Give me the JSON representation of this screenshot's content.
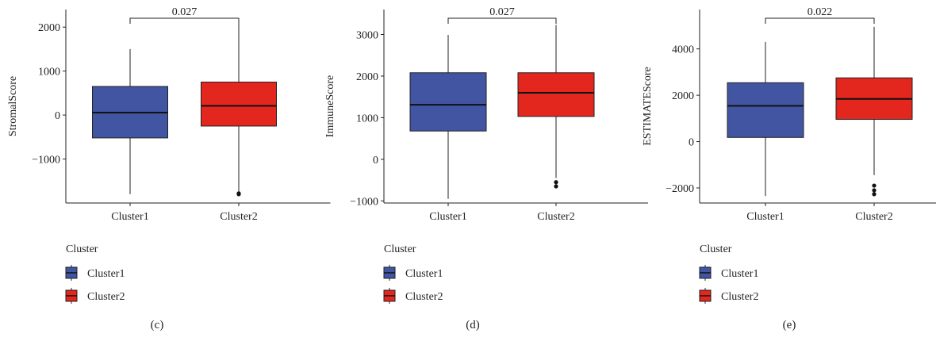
{
  "legend": {
    "title": "Cluster",
    "items": [
      {
        "label": "Cluster1",
        "color": "#4155a3"
      },
      {
        "label": "Cluster2",
        "color": "#e3261e"
      }
    ]
  },
  "chart_data": [
    {
      "type": "box",
      "panel_label": "(c)",
      "ylabel": "StromalScore",
      "xlabel": "",
      "categories": [
        "Cluster1",
        "Cluster2"
      ],
      "ylim": [
        -2000,
        2400
      ],
      "yticks": [
        -1000,
        0,
        1000,
        2000
      ],
      "ytick_labels": [
        "−1000",
        "0",
        "1000",
        "2000"
      ],
      "p_value": "0.027",
      "boxes": [
        {
          "name": "Cluster1",
          "whisker_low": -1800,
          "q1": -520,
          "median": 55,
          "q3": 650,
          "whisker_high": 1500,
          "outliers": []
        },
        {
          "name": "Cluster2",
          "whisker_low": -1750,
          "q1": -250,
          "median": 210,
          "q3": 750,
          "whisker_high": 2100,
          "outliers": [
            -1780,
            -1800
          ]
        }
      ]
    },
    {
      "type": "box",
      "panel_label": "(d)",
      "ylabel": "ImmuneScore",
      "xlabel": "",
      "categories": [
        "Cluster1",
        "Cluster2"
      ],
      "ylim": [
        -1050,
        3600
      ],
      "yticks": [
        -1000,
        0,
        1000,
        2000,
        3000
      ],
      "ytick_labels": [
        "−1000",
        "0",
        "1000",
        "2000",
        "3000"
      ],
      "p_value": "0.027",
      "boxes": [
        {
          "name": "Cluster1",
          "whisker_low": -950,
          "q1": 680,
          "median": 1310,
          "q3": 2080,
          "whisker_high": 2990,
          "outliers": []
        },
        {
          "name": "Cluster2",
          "whisker_low": -450,
          "q1": 1030,
          "median": 1600,
          "q3": 2080,
          "whisker_high": 3230,
          "outliers": [
            -550,
            -650
          ]
        }
      ]
    },
    {
      "type": "box",
      "panel_label": "(e)",
      "ylabel": "ESTIMATEScore",
      "xlabel": "",
      "categories": [
        "Cluster1",
        "Cluster2"
      ],
      "ylim": [
        -2650,
        5700
      ],
      "yticks": [
        -2000,
        0,
        2000,
        4000
      ],
      "ytick_labels": [
        "−2000",
        "0",
        "2000",
        "4000"
      ],
      "p_value": "0.022",
      "boxes": [
        {
          "name": "Cluster1",
          "whisker_low": -2350,
          "q1": 180,
          "median": 1540,
          "q3": 2540,
          "whisker_high": 4300,
          "outliers": []
        },
        {
          "name": "Cluster2",
          "whisker_low": -1450,
          "q1": 960,
          "median": 1840,
          "q3": 2750,
          "whisker_high": 4950,
          "outliers": [
            -1900,
            -2100,
            -2270
          ]
        }
      ]
    }
  ]
}
